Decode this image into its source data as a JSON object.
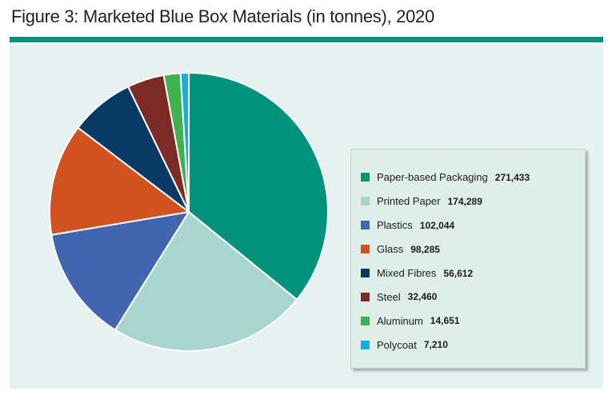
{
  "figure_title": "Figure 3: Marketed Blue Box Materials (in tonnes), 2020",
  "chart_data": {
    "type": "pie",
    "title": "Figure 3: Marketed Blue Box Materials (in tonnes), 2020",
    "legend_position": "right",
    "slices": [
      {
        "label": "Paper-based Packaging",
        "value": 271433,
        "value_text": "271,433",
        "color": "#00927b"
      },
      {
        "label": "Printed Paper",
        "value": 174289,
        "value_text": "174,289",
        "color": "#a8d5ce"
      },
      {
        "label": "Plastics",
        "value": 102044,
        "value_text": "102,044",
        "color": "#4165b0"
      },
      {
        "label": "Glass",
        "value": 98285,
        "value_text": "98,285",
        "color": "#d2521f"
      },
      {
        "label": "Mixed Fibres",
        "value": 56612,
        "value_text": "56,612",
        "color": "#073b66"
      },
      {
        "label": "Steel",
        "value": 32460,
        "value_text": "32,460",
        "color": "#7e2a27"
      },
      {
        "label": "Aluminum",
        "value": 14651,
        "value_text": "14,651",
        "color": "#3db24f"
      },
      {
        "label": "Polycoat",
        "value": 7210,
        "value_text": "7,210",
        "color": "#13aee5"
      }
    ]
  }
}
